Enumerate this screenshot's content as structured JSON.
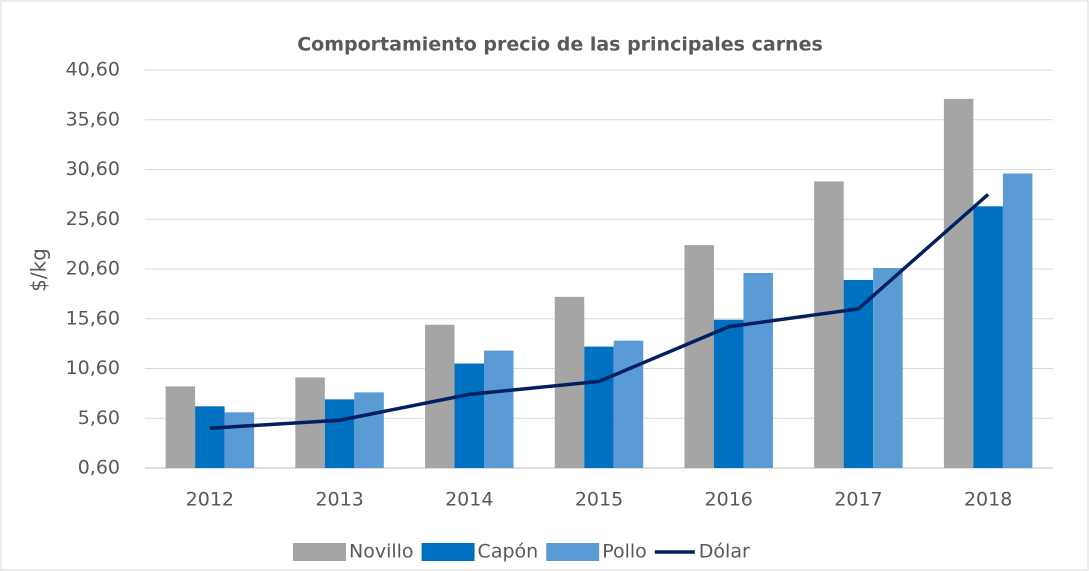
{
  "chart_data": {
    "type": "bar_line",
    "title": "Comportamiento precio de las principales carnes",
    "y_label": "$/kg",
    "categories": [
      "2012",
      "2013",
      "2014",
      "2015",
      "2016",
      "2017",
      "2018"
    ],
    "series": [
      {
        "name": "Novillo",
        "color": "#a5a5a5",
        "kind": "bar",
        "values": [
          8.8,
          9.7,
          15.0,
          17.8,
          23.0,
          29.4,
          37.7
        ]
      },
      {
        "name": "Capón",
        "color": "#0070c0",
        "kind": "bar",
        "values": [
          6.8,
          7.5,
          11.1,
          12.8,
          15.5,
          19.5,
          26.9
        ]
      },
      {
        "name": "Pollo",
        "color": "#5b9bd5",
        "kind": "bar",
        "values": [
          6.2,
          8.2,
          12.4,
          13.4,
          20.2,
          20.7,
          30.2
        ]
      },
      {
        "name": "Dólar",
        "color": "#002060",
        "kind": "line",
        "values": [
          4.6,
          5.4,
          8.0,
          9.3,
          14.8,
          16.6,
          28.1
        ]
      }
    ],
    "ylim": [
      0.6,
      40.6
    ],
    "yticks": [
      {
        "value": 0.6,
        "label": "0,60"
      },
      {
        "value": 5.6,
        "label": "5,60"
      },
      {
        "value": 10.6,
        "label": "10,60"
      },
      {
        "value": 15.6,
        "label": "15,60"
      },
      {
        "value": 20.6,
        "label": "20,60"
      },
      {
        "value": 25.6,
        "label": "25,60"
      },
      {
        "value": 30.6,
        "label": "30,60"
      },
      {
        "value": 35.6,
        "label": "35,60"
      },
      {
        "value": 40.6,
        "label": "40,60"
      }
    ],
    "grid": true,
    "legend": "bottom"
  }
}
